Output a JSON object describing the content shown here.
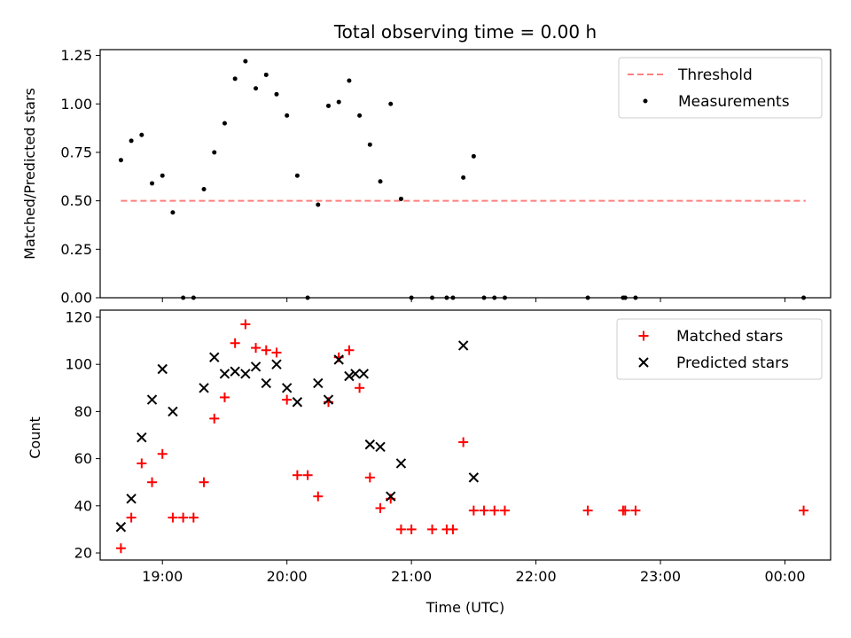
{
  "chart_data": [
    {
      "type": "scatter",
      "title": "Total observing time = 0.00 h",
      "xlabel": "",
      "ylabel": "Matched/Predicted stars",
      "ylim": [
        0,
        1.28
      ],
      "yticks": [
        "0.00",
        "0.25",
        "0.50",
        "0.75",
        "1.00",
        "1.25"
      ],
      "ytick_values": [
        0,
        0.25,
        0.5,
        0.75,
        1.0,
        1.25
      ],
      "xlim": [
        "18:30",
        "00:22"
      ],
      "xticks": [
        "19:00",
        "20:00",
        "21:00",
        "22:00",
        "23:00",
        "00:00"
      ],
      "legend_position": "top-right",
      "threshold": {
        "name": "Threshold",
        "value": 0.5,
        "x": [
          "18:40",
          "00:10"
        ],
        "color": "#ff7f7f"
      },
      "series": [
        {
          "name": "Measurements",
          "color": "#000000",
          "points": [
            [
              "18:40",
              0.71
            ],
            [
              "18:45",
              0.81
            ],
            [
              "18:50",
              0.84
            ],
            [
              "18:55",
              0.59
            ],
            [
              "19:00",
              0.63
            ],
            [
              "19:05",
              0.44
            ],
            [
              "19:10",
              0.0
            ],
            [
              "19:15",
              0.0
            ],
            [
              "19:20",
              0.56
            ],
            [
              "19:25",
              0.75
            ],
            [
              "19:30",
              0.9
            ],
            [
              "19:35",
              1.13
            ],
            [
              "19:40",
              1.22
            ],
            [
              "19:45",
              1.08
            ],
            [
              "19:50",
              1.15
            ],
            [
              "19:55",
              1.05
            ],
            [
              "20:00",
              0.94
            ],
            [
              "20:05",
              0.63
            ],
            [
              "20:10",
              0.0
            ],
            [
              "20:15",
              0.48
            ],
            [
              "20:20",
              0.99
            ],
            [
              "20:25",
              1.01
            ],
            [
              "20:30",
              1.12
            ],
            [
              "20:35",
              0.94
            ],
            [
              "20:40",
              0.79
            ],
            [
              "20:45",
              0.6
            ],
            [
              "20:50",
              1.0
            ],
            [
              "20:55",
              0.51
            ],
            [
              "21:00",
              0.0
            ],
            [
              "21:10",
              0.0
            ],
            [
              "21:17",
              0.0
            ],
            [
              "21:20",
              0.0
            ],
            [
              "21:25",
              0.62
            ],
            [
              "21:30",
              0.73
            ],
            [
              "21:35",
              0.0
            ],
            [
              "21:40",
              0.0
            ],
            [
              "21:45",
              0.0
            ],
            [
              "22:25",
              0.0
            ],
            [
              "22:42",
              0.0
            ],
            [
              "22:43",
              0.0
            ],
            [
              "22:48",
              0.0
            ],
            [
              "00:09",
              0.0
            ]
          ]
        }
      ]
    },
    {
      "type": "scatter",
      "title": "",
      "xlabel": "Time (UTC)",
      "ylabel": "Count",
      "ylim": [
        17,
        123
      ],
      "yticks": [
        "20",
        "40",
        "60",
        "80",
        "100",
        "120"
      ],
      "ytick_values": [
        20,
        40,
        60,
        80,
        100,
        120
      ],
      "xlim": [
        "18:30",
        "00:22"
      ],
      "xticks": [
        "19:00",
        "20:00",
        "21:00",
        "22:00",
        "23:00",
        "00:00"
      ],
      "legend_position": "top-right",
      "series": [
        {
          "name": "Matched stars",
          "marker": "plus",
          "color": "#ff0000",
          "points": [
            [
              "18:40",
              22
            ],
            [
              "18:45",
              35
            ],
            [
              "18:50",
              58
            ],
            [
              "18:55",
              50
            ],
            [
              "19:00",
              62
            ],
            [
              "19:05",
              35
            ],
            [
              "19:10",
              35
            ],
            [
              "19:15",
              35
            ],
            [
              "19:20",
              50
            ],
            [
              "19:25",
              77
            ],
            [
              "19:30",
              86
            ],
            [
              "19:35",
              109
            ],
            [
              "19:40",
              117
            ],
            [
              "19:45",
              107
            ],
            [
              "19:50",
              106
            ],
            [
              "19:55",
              105
            ],
            [
              "20:00",
              85
            ],
            [
              "20:05",
              53
            ],
            [
              "20:10",
              53
            ],
            [
              "20:15",
              44
            ],
            [
              "20:20",
              84
            ],
            [
              "20:25",
              103
            ],
            [
              "20:30",
              106
            ],
            [
              "20:35",
              90
            ],
            [
              "20:40",
              52
            ],
            [
              "20:45",
              39
            ],
            [
              "20:50",
              43
            ],
            [
              "20:55",
              30
            ],
            [
              "21:00",
              30
            ],
            [
              "21:10",
              30
            ],
            [
              "21:17",
              30
            ],
            [
              "21:20",
              30
            ],
            [
              "21:25",
              67
            ],
            [
              "21:30",
              38
            ],
            [
              "21:35",
              38
            ],
            [
              "21:40",
              38
            ],
            [
              "21:45",
              38
            ],
            [
              "22:25",
              38
            ],
            [
              "22:42",
              38
            ],
            [
              "22:43",
              38
            ],
            [
              "22:48",
              38
            ],
            [
              "00:09",
              38
            ]
          ]
        },
        {
          "name": "Predicted stars",
          "marker": "x",
          "color": "#000000",
          "points": [
            [
              "18:40",
              31
            ],
            [
              "18:45",
              43
            ],
            [
              "18:50",
              69
            ],
            [
              "18:55",
              85
            ],
            [
              "19:00",
              98
            ],
            [
              "19:05",
              80
            ],
            [
              "19:20",
              90
            ],
            [
              "19:25",
              103
            ],
            [
              "19:30",
              96
            ],
            [
              "19:35",
              97
            ],
            [
              "19:40",
              96
            ],
            [
              "19:45",
              99
            ],
            [
              "19:50",
              92
            ],
            [
              "19:55",
              100
            ],
            [
              "20:00",
              90
            ],
            [
              "20:05",
              84
            ],
            [
              "20:15",
              92
            ],
            [
              "20:20",
              85
            ],
            [
              "20:25",
              102
            ],
            [
              "20:30",
              95
            ],
            [
              "20:33",
              96
            ],
            [
              "20:37",
              96
            ],
            [
              "20:40",
              66
            ],
            [
              "20:45",
              65
            ],
            [
              "20:50",
              44
            ],
            [
              "20:55",
              58
            ],
            [
              "21:25",
              108
            ],
            [
              "21:30",
              52
            ]
          ]
        }
      ]
    }
  ]
}
